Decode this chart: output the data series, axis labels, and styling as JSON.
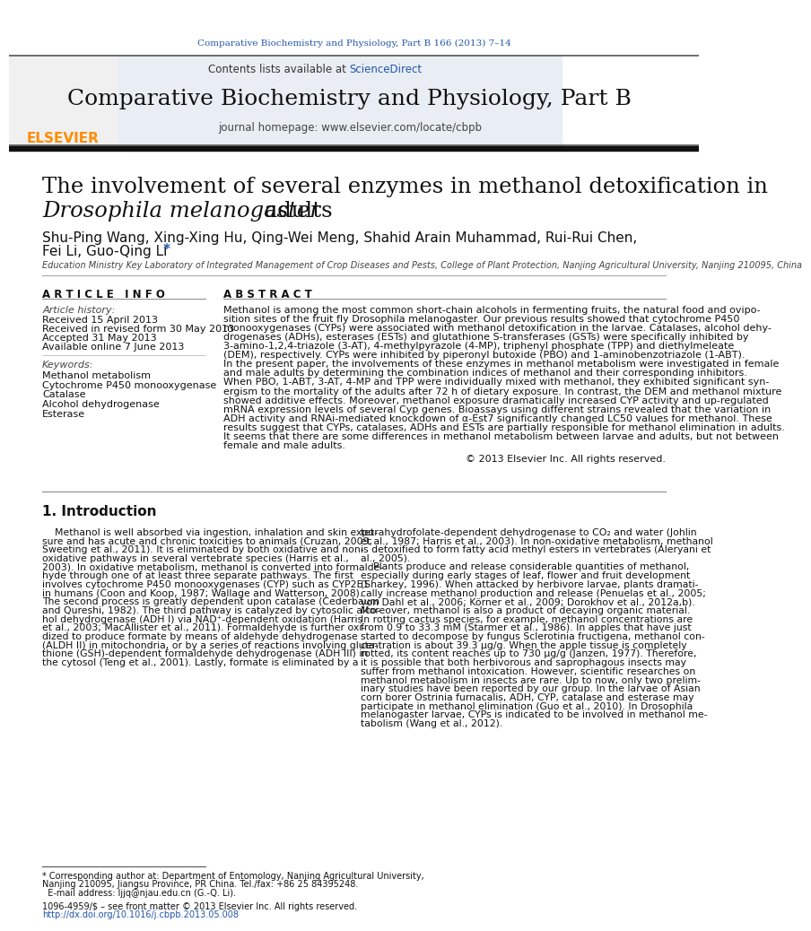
{
  "page_title_journal": "Comparative Biochemistry and Physiology, Part B 166 (2013) 7–14",
  "journal_name": "Comparative Biochemistry and Physiology, Part B",
  "journal_homepage": "journal homepage: www.elsevier.com/locate/cbpb",
  "contents_text": "Contents lists available at ScienceDirect",
  "article_title_line1": "The involvement of several enzymes in methanol detoxification in",
  "article_title_line2": "Drosophila melanogaster adults",
  "authors_line1": "Shu-Ping Wang, Xing-Xing Hu, Qing-Wei Meng, Shahid Arain Muhammad, Rui-Rui Chen,",
  "authors_line2a": "Fei Li, Guo-Qing Li ",
  "authors_line2b": "*",
  "affiliation": "Education Ministry Key Laboratory of Integrated Management of Crop Diseases and Pests, College of Plant Protection, Nanjing Agricultural University, Nanjing 210095, China",
  "article_info_header": "A R T I C L E   I N F O",
  "abstract_header": "A B S T R A C T",
  "article_history_header": "Article history:",
  "received": "Received 15 April 2013",
  "revised": "Received in revised form 30 May 2013",
  "accepted": "Accepted 31 May 2013",
  "available": "Available online 7 June 2013",
  "keywords_header": "Keywords:",
  "keywords": [
    "Methanol metabolism",
    "Cytochrome P450 monooxygenase",
    "Catalase",
    "Alcohol dehydrogenase",
    "Esterase"
  ],
  "abstract_text": "Methanol is among the most common short-chain alcohols in fermenting fruits, the natural food and ovipo-\nsition sites of the fruit fly Drosophila melanogaster. Our previous results showed that cytochrome P450\nmonooxygenases (CYPs) were associated with methanol detoxification in the larvae. Catalases, alcohol dehy-\ndrogenases (ADHs), esterases (ESTs) and glutathione S-transferases (GSTs) were specifically inhibited by\n3-amino-1,2,4-triazole (3-AT), 4-methylpyrazole (4-MP), triphenyl phosphate (TPP) and diethylmeleate\n(DEM), respectively. CYPs were inhibited by piperonyl butoxide (PBO) and 1-aminobenzotriazole (1-ABT).\nIn the present paper, the involvements of these enzymes in methanol metabolism were investigated in female\nand male adults by determining the combination indices of methanol and their corresponding inhibitors.\nWhen PBO, 1-ABT, 3-AT, 4-MP and TPP were individually mixed with methanol, they exhibited significant syn-\nergism to the mortality of the adults after 72 h of dietary exposure. In contrast, the DEM and methanol mixture\nshowed additive effects. Moreover, methanol exposure dramatically increased CYP activity and up-regulated\nmRNA expression levels of several Cyp genes. Bioassays using different strains revealed that the variation in\nADH activity and RNAi-mediated knockdown of α-Est7 significantly changed LC50 values for methanol. These\nresults suggest that CYPs, catalases, ADHs and ESTs are partially responsible for methanol elimination in adults.\nIt seems that there are some differences in methanol metabolism between larvae and adults, but not between\nfemale and male adults.",
  "copyright": "© 2013 Elsevier Inc. All rights reserved.",
  "section1_header": "1. Introduction",
  "intro_col1_text": "    Methanol is well absorbed via ingestion, inhalation and skin expo-\nsure and has acute and chronic toxicities to animals (Cruzan, 2009;\nSweeting et al., 2011). It is eliminated by both oxidative and non-\noxidative pathways in several vertebrate species (Harris et al.,\n2003). In oxidative metabolism, methanol is converted into formalde-\nhyde through one of at least three separate pathways. The first\ninvolves cytochrome P450 monooxygenases (CYP) such as CYP2E1\nin humans (Coon and Koop, 1987; Wallage and Watterson, 2008).\nThe second process is greatly dependent upon catalase (Cederbaum\nand Qureshi, 1982). The third pathway is catalyzed by cytosolic alco-\nhol dehydrogenase (ADH I) via NAD⁺-dependent oxidation (Harris\net al., 2003; MacAllister et al., 2011). Formaldehyde is further oxi-\ndized to produce formate by means of aldehyde dehydrogenase\n(ALDH II) in mitochondria, or by a series of reactions involving gluta-\nthione (GSH)-dependent formaldehyde dehydrogenase (ADH III) in\nthe cytosol (Teng et al., 2001). Lastly, formate is eliminated by a",
  "intro_col2_text": "tetrahydrofolate-dependent dehydrogenase to CO₂ and water (Johlin\net al., 1987; Harris et al., 2003). In non-oxidative metabolism, methanol\nis detoxified to form fatty acid methyl esters in vertebrates (Aleryani et\nal., 2005).\n    Plants produce and release considerable quantities of methanol,\nespecially during early stages of leaf, flower and fruit development\n(Sharkey, 1996). When attacked by herbivore larvae, plants dramati-\ncally increase methanol production and release (Penuelas et al., 2005;\nvon Dahl et al., 2006; Körner et al., 2009; Dorokhov et al., 2012a,b).\nMoreover, methanol is also a product of decaying organic material.\nIn rotting cactus species, for example, methanol concentrations are\nfrom 0.9 to 33.3 mM (Starmer et al., 1986). In apples that have just\nstarted to decompose by fungus Sclerotinia fructigena, methanol con-\ncentration is about 39.3 μg/g. When the apple tissue is completely\nrotted, its content reaches up to 730 μg/g (Janzen, 1977). Therefore,\nit is possible that both herbivorous and saprophagous insects may\nsuffer from methanol intoxication. However, scientific researches on\nmethanol metabolism in insects are rare. Up to now, only two prelim-\ninary studies have been reported by our group. In the larvae of Asian\ncorn borer Ostrinia furnacalis, ADH, CYP, catalase and esterase may\nparticipate in methanol elimination (Guo et al., 2010). In Drosophila\nmelanogaster larvae, CYPs is indicated to be involved in methanol me-\ntabolism (Wang et al., 2012).",
  "footnote_text": "* Corresponding author at: Department of Entomology, Nanjing Agricultural University,\nNanjing 210095, Jiangsu Province, PR China. Tel./fax: +86 25 84395248.\n  E-mail address: ljjq@njau.edu.cn (G.-Q. Li).",
  "footer_issn": "1096-4959/$ – see front matter © 2013 Elsevier Inc. All rights reserved.",
  "footer_doi": "http://dx.doi.org/10.1016/j.cbpb.2013.05.008",
  "bg_color": "#ffffff",
  "header_bg_color": "#e8eef4",
  "black_bar_color": "#111111",
  "link_color": "#2255aa",
  "elsevier_color": "#ff8c00",
  "gray_line_color": "#999999",
  "dark_gray_line": "#555555"
}
